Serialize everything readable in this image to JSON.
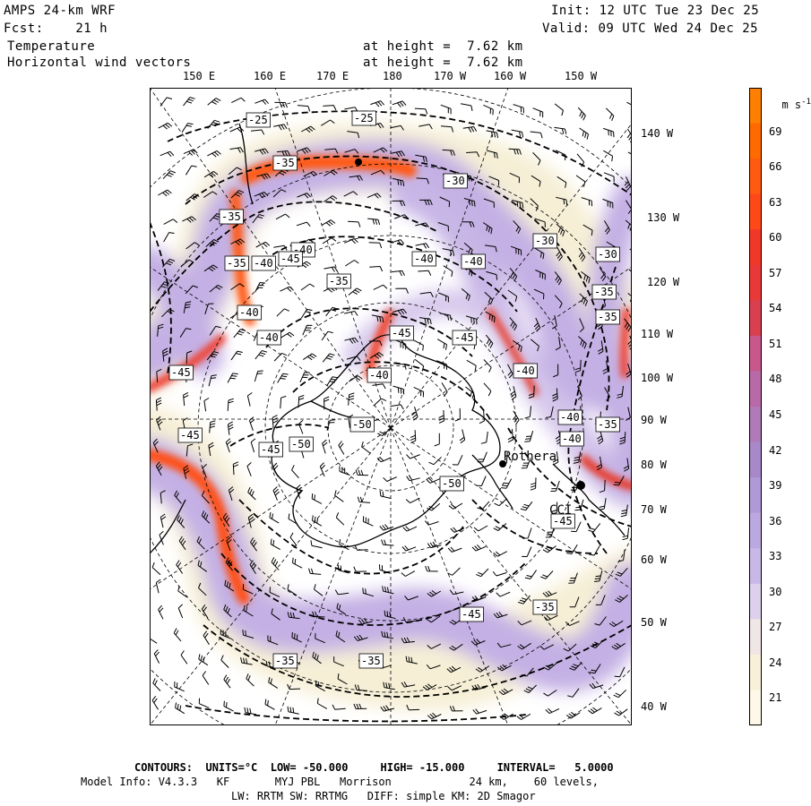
{
  "header": {
    "model_title": "AMPS 24-km WRF",
    "forecast": "Fcst:    21 h",
    "field1": "Temperature",
    "field2": "Horizontal wind vectors",
    "height1": "at height =  7.62 km",
    "height2": "at height =  7.62 km",
    "init": "Init: 12 UTC Tue 23 Dec 25",
    "valid": "Valid: 09 UTC Wed 24 Dec 25"
  },
  "top_lon_labels": [
    "150 E",
    "160 E",
    "170 E",
    "180",
    "170 W",
    "160 W",
    "150 W"
  ],
  "right_lon_labels": [
    "140 W",
    "130 W",
    "120 W",
    "110 W",
    "100 W",
    "90 W",
    "80 W",
    "70 W",
    "60 W",
    "50 W",
    "40 W"
  ],
  "places": [
    "Rothera",
    "CCI"
  ],
  "contour_labels": [
    "-25",
    "-25",
    "-30",
    "-30",
    "-30",
    "-35",
    "-35",
    "-35",
    "-35",
    "-35",
    "-35",
    "-35",
    "-35",
    "-35",
    "-35",
    "-40",
    "-40",
    "-40",
    "-40",
    "-40",
    "-40",
    "-40",
    "-40",
    "-40",
    "-40",
    "-45",
    "-45",
    "-45",
    "-45",
    "-45",
    "-45",
    "-45",
    "-45",
    "-50",
    "-50",
    "-50"
  ],
  "colorbar": {
    "unit": "m s",
    "unit_exp": "-1",
    "labels": [
      "69",
      "66",
      "63",
      "60",
      "57",
      "54",
      "51",
      "48",
      "45",
      "42",
      "39",
      "36",
      "33",
      "30",
      "27",
      "24",
      "21"
    ],
    "colors": [
      "#ff7f00",
      "#ff6a00",
      "#ff5a10",
      "#ff4818",
      "#f03828",
      "#e83838",
      "#d84050",
      "#c8588c",
      "#b86aa8",
      "#b07ab8",
      "#a888c8",
      "#b09ad6",
      "#bca8e0",
      "#c8b8e8",
      "#dcd0ec",
      "#f0e6e6",
      "#f8f0d8",
      "#fdf8e8"
    ]
  },
  "footer": {
    "contours": "CONTOURS:  UNITS=°C  LOW= -50.000     HIGH= -15.000     INTERVAL=   5.0000",
    "model_info": "Model Info: V4.3.3   KF       MYJ PBL   Morrison            24 km,    60 levels,",
    "physics": "LW: RRTM SW: RRTMG   DIFF: simple KM: 2D Smagor"
  }
}
